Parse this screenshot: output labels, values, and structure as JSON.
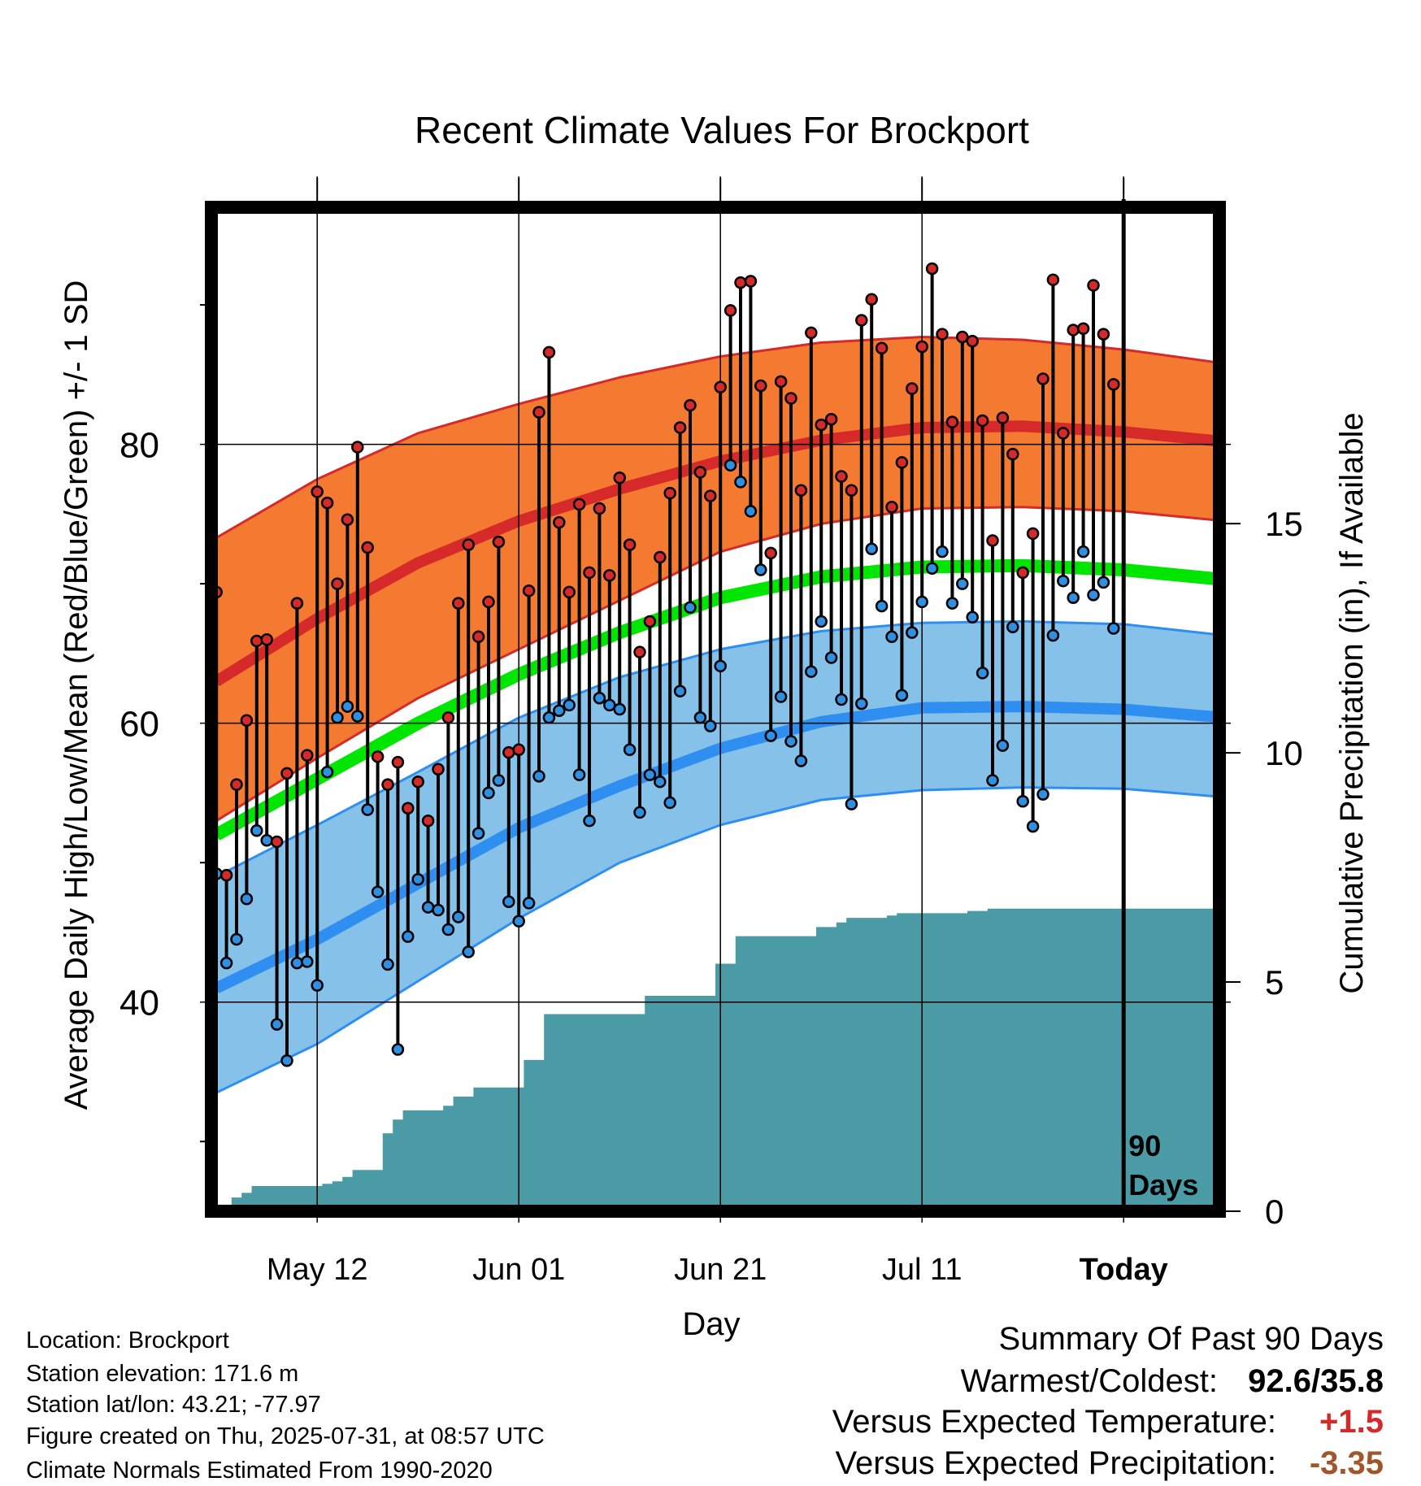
{
  "chart_data": {
    "type": "line",
    "title": "Recent Climate Values For Brockport",
    "xlabel": "Day",
    "ylabel": "Average Daily High/Low/Mean (Red/Blue/Green) +/- 1 SD",
    "y2label": "Cumulative Precipitation (in), If Available",
    "ylim": [
      25,
      97
    ],
    "y2lim": [
      0,
      21.9
    ],
    "yticks": [
      "40",
      "60",
      "80"
    ],
    "y2ticks": [
      "0",
      "5",
      "10",
      "15"
    ],
    "xticks": [
      "May 12",
      "Jun 01",
      "Jun 21",
      "Jul 11",
      "Today"
    ],
    "x_range_days": [
      -90.5,
      9.5
    ],
    "grid": true,
    "today_marker_label": [
      "90",
      "Days"
    ],
    "colors": {
      "high_band": "#f37a30",
      "high_mean": "#d62a2a",
      "high_edge": "#d42a2a",
      "low_band": "#85c1e8",
      "low_mean": "#2f8ff0",
      "low_edge": "#2f8ff0",
      "mean_line": "#00e600",
      "precip": "#4a9ba6",
      "high_dot": "#d42a2a",
      "low_dot": "#2f8fe0"
    },
    "normals": {
      "days": [
        -90,
        -80,
        -70,
        -60,
        -50,
        -40,
        -30,
        -20,
        -10,
        0,
        10
      ],
      "high_mean": [
        63,
        67.5,
        71.5,
        74.5,
        76.8,
        78.8,
        80.3,
        81.2,
        81.3,
        80.9,
        80.2
      ],
      "high_sd_upper": [
        73.3,
        77.5,
        80.8,
        82.9,
        84.8,
        86.3,
        87.3,
        87.7,
        87.5,
        86.8,
        85.8
      ],
      "high_sd_lower": [
        53,
        57.5,
        61.8,
        65.3,
        68.8,
        72.3,
        74.3,
        75.4,
        75.5,
        75.2,
        74.5
      ],
      "mean_temp": [
        52,
        56,
        60,
        63.5,
        66.5,
        69,
        70.5,
        71.2,
        71.3,
        71,
        70.3
      ],
      "low_mean": [
        41,
        44.5,
        48.5,
        52.5,
        55.5,
        58.2,
        60.1,
        61.1,
        61.2,
        61,
        60.4
      ],
      "low_sd_upper": [
        49,
        52.7,
        56.5,
        60.4,
        63.3,
        65.3,
        66.6,
        67.2,
        67.3,
        67.1,
        66.3
      ],
      "low_sd_lower": [
        33.5,
        37,
        41.5,
        46,
        50,
        52.7,
        54.5,
        55.2,
        55.4,
        55.3,
        54.7
      ]
    },
    "series": [
      {
        "name": "Daily High",
        "start_day": -90,
        "values": [
          69.4,
          49.1,
          55.6,
          60.2,
          65.9,
          66,
          51.5,
          56.4,
          68.6,
          57.7,
          76.6,
          75.8,
          70.0,
          74.6,
          79.8,
          72.6,
          57.6,
          55.6,
          57.2,
          53.9,
          55.8,
          53.0,
          56.7,
          60.4,
          68.6,
          72.8,
          66.2,
          68.7,
          73.0,
          57.9,
          58.1,
          69.5,
          82.3,
          86.6,
          74.4,
          69.4,
          75.7,
          70.8,
          75.4,
          70.6,
          77.6,
          72.8,
          65.1,
          67.3,
          71.9,
          76.5,
          81.2,
          82.8,
          78.0,
          76.3,
          84.1,
          89.6,
          91.6,
          91.7,
          84.2,
          72.2,
          84.5,
          83.3,
          76.7,
          88.0,
          81.4,
          81.8,
          77.7,
          76.7,
          88.9,
          90.4,
          86.9,
          75.5,
          78.7,
          84.0,
          87.0,
          92.6,
          87.9,
          81.6,
          87.7,
          87.4,
          81.7,
          73.1,
          81.9,
          79.3,
          70.8,
          73.6,
          84.7,
          91.8,
          80.8,
          88.2,
          88.3,
          91.4,
          87.9,
          84.3
        ]
      },
      {
        "name": "Daily Low",
        "start_day": -90,
        "values": [
          49.2,
          42.8,
          44.5,
          47.4,
          52.3,
          51.6,
          38.4,
          35.8,
          42.8,
          42.9,
          41.2,
          56.5,
          60.4,
          61.2,
          60.5,
          53.8,
          47.9,
          42.7,
          36.6,
          44.7,
          48.8,
          46.8,
          46.6,
          45.2,
          46.1,
          43.6,
          52.1,
          55.0,
          55.9,
          47.2,
          45.8,
          47.1,
          56.2,
          60.4,
          60.9,
          61.3,
          56.3,
          53.0,
          61.8,
          61.3,
          61.0,
          58.1,
          53.6,
          56.3,
          55.8,
          54.3,
          62.3,
          68.3,
          60.4,
          59.8,
          64.1,
          78.5,
          77.3,
          75.2,
          71.0,
          59.1,
          61.9,
          58.7,
          57.3,
          63.7,
          67.3,
          64.7,
          61.7,
          54.2,
          61.4,
          72.5,
          68.4,
          66.2,
          62.0,
          66.5,
          68.7,
          71.1,
          72.3,
          68.6,
          70.0,
          67.6,
          63.6,
          55.9,
          58.4,
          66.9,
          54.4,
          52.6,
          54.9,
          66.3,
          70.2,
          69.0,
          72.3,
          69.2,
          70.1,
          66.8
        ]
      },
      {
        "name": "Cumulative Precipitation",
        "start_day": -90,
        "values": [
          0.05,
          0.05,
          0.3,
          0.4,
          0.55,
          0.55,
          0.55,
          0.55,
          0.55,
          0.55,
          0.55,
          0.6,
          0.65,
          0.75,
          0.9,
          0.9,
          0.9,
          1.7,
          2.0,
          2.2,
          2.2,
          2.2,
          2.2,
          2.3,
          2.5,
          2.5,
          2.7,
          2.7,
          2.7,
          2.7,
          2.7,
          3.3,
          3.3,
          4.3,
          4.3,
          4.3,
          4.3,
          4.3,
          4.3,
          4.3,
          4.3,
          4.3,
          4.3,
          4.7,
          4.7,
          4.7,
          4.7,
          4.7,
          4.7,
          4.7,
          5.4,
          5.4,
          6.0,
          6.0,
          6.0,
          6.0,
          6.0,
          6.0,
          6.0,
          6.0,
          6.2,
          6.2,
          6.3,
          6.4,
          6.4,
          6.4,
          6.4,
          6.45,
          6.5,
          6.5,
          6.5,
          6.5,
          6.5,
          6.5,
          6.5,
          6.55,
          6.55,
          6.6,
          6.6,
          6.6,
          6.6,
          6.6,
          6.6,
          6.6,
          6.6,
          6.6,
          6.6,
          6.6,
          6.6,
          6.6,
          6.6,
          6.6,
          6.6,
          6.6,
          6.6,
          6.6,
          6.6,
          6.6,
          6.6,
          6.6
        ]
      }
    ]
  },
  "footer": {
    "location": "Location: Brockport",
    "elevation": "Station elevation: 171.6 m",
    "latlon": "Station lat/lon: 43.21; -77.97",
    "created": "Figure created on Thu, 2025-07-31, at 08:57 UTC",
    "normals": "Climate Normals Estimated From 1990-2020"
  },
  "summary": {
    "heading": "Summary Of Past 90 Days",
    "warm_cold_label": "Warmest/Coldest:",
    "warm_cold_value": "92.6/35.8",
    "temp_label": "Versus Expected Temperature:",
    "temp_value": "+1.5",
    "temp_color": "#d42a2a",
    "precip_label": "Versus Expected Precipitation:",
    "precip_value": "-3.35",
    "precip_color": "#a0552a"
  }
}
